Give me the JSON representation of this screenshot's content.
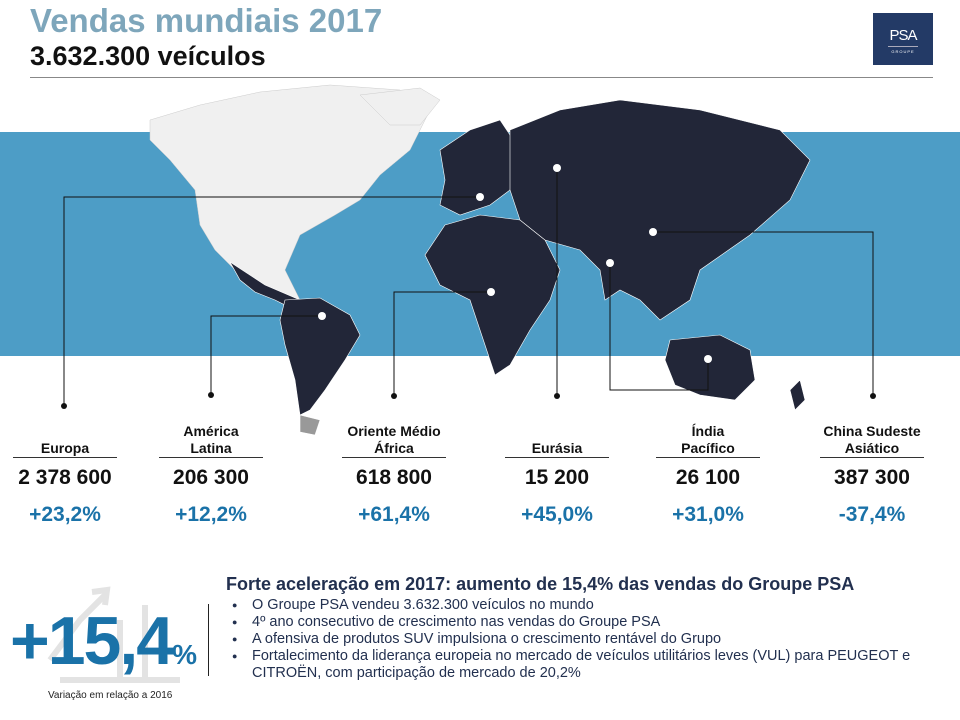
{
  "header": {
    "title": "Vendas mundiais 2017",
    "subtitle": "3.632.300 veículos",
    "logo": "PSA GROUPE"
  },
  "colors": {
    "band": "#4d9dc6",
    "land": "#222638",
    "north_america": "#f0f0f0",
    "accent": "#1a72a8"
  },
  "regions": [
    {
      "label": "Europa",
      "sales": "2 378 600",
      "change": "+23,2%"
    },
    {
      "label": "América Latina",
      "sales": "206 300",
      "change": "+12,2%"
    },
    {
      "label": "Oriente Médio África",
      "sales": "618 800",
      "change": "+61,4%"
    },
    {
      "label": "Eurásia",
      "sales": "15 200",
      "change": "+45,0%"
    },
    {
      "label": "Índia Pacífico",
      "sales": "26 100",
      "change": "+31,0%"
    },
    {
      "label": "China Sudeste Asiático",
      "sales": "387 300",
      "change": "-37,4%"
    }
  ],
  "summary": {
    "big_value": "+15,4",
    "big_unit": "%",
    "big_caption": "Variação em relação a 2016",
    "headline": "Forte aceleração em 2017: aumento de 15,4% das vendas do Groupe PSA",
    "bullets": [
      "O Groupe PSA vendeu 3.632.300 veículos no mundo",
      "4º ano consecutivo de crescimento nas vendas do Groupe PSA",
      "A ofensiva de produtos SUV impulsiona o crescimento rentável do Grupo",
      "Fortalecimento da liderança europeia no mercado de veículos utilitários leves (VUL) para PEUGEOT e CITROËN, com participação de mercado de 20,2%"
    ]
  }
}
